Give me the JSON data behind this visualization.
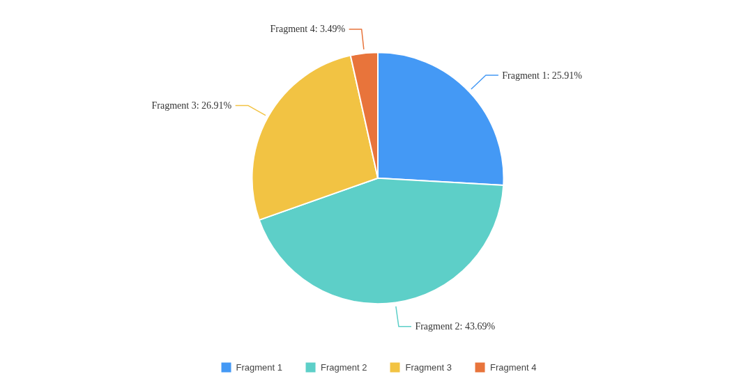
{
  "chart_data": {
    "type": "pie",
    "categories": [
      "Fragment 1",
      "Fragment 2",
      "Fragment 3",
      "Fragment 4"
    ],
    "values": [
      25.91,
      43.69,
      26.91,
      3.49
    ],
    "colors": [
      "#4499f5",
      "#5dcfc8",
      "#f2c343",
      "#e8743b"
    ],
    "value_labels": [
      "Fragment 1: 25.91%",
      "Fragment 2: 43.69%",
      "Fragment 3: 26.91%",
      "Fragment 4: 3.49%"
    ],
    "legend": "bottom"
  }
}
